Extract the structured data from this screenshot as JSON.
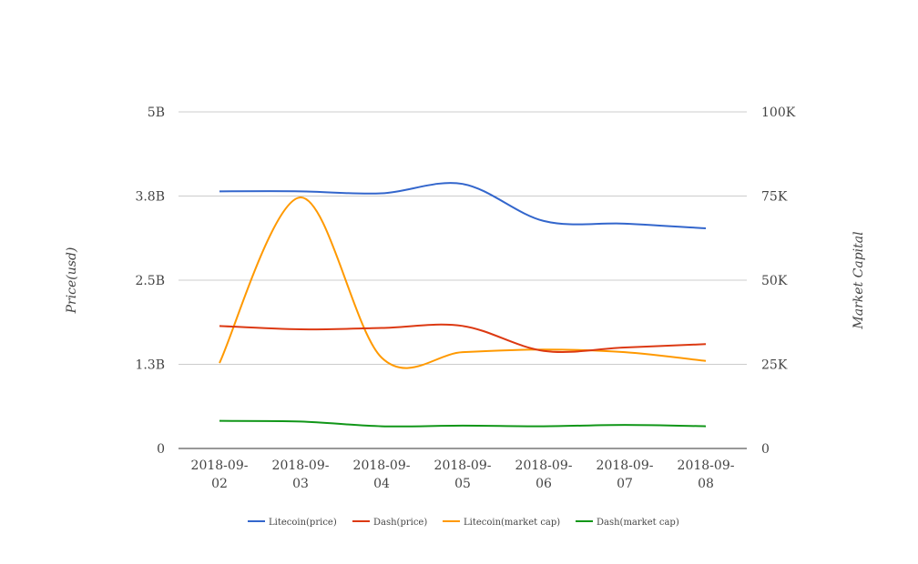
{
  "chart_data": {
    "type": "line",
    "categories": [
      "2018-09-02",
      "2018-09-03",
      "2018-09-04",
      "2018-09-05",
      "2018-09-06",
      "2018-09-07",
      "2018-09-08"
    ],
    "category_lines": [
      [
        "2018-09-",
        "02"
      ],
      [
        "2018-09-",
        "03"
      ],
      [
        "2018-09-",
        "04"
      ],
      [
        "2018-09-",
        "05"
      ],
      [
        "2018-09-",
        "06"
      ],
      [
        "2018-09-",
        "07"
      ],
      [
        "2018-09-",
        "08"
      ]
    ],
    "ylabel": "Price(usd)",
    "y2label": "Market Capital",
    "ylim": [
      0,
      5
    ],
    "y_unit": "B",
    "y_ticks": [
      0,
      1.25,
      2.5,
      3.75,
      5
    ],
    "y_tick_labels": [
      "0",
      "1.3B",
      "2.5B",
      "3.8B",
      "5B"
    ],
    "y2_tick_labels": [
      "0",
      "25K",
      "50K",
      "75K",
      "100K"
    ],
    "grid": true,
    "legend_position": "bottom",
    "series": [
      {
        "name": "Litecoin(price)",
        "color": "#3366cc",
        "values": [
          3.82,
          3.82,
          3.79,
          3.93,
          3.38,
          3.34,
          3.27
        ]
      },
      {
        "name": "Dash(price)",
        "color": "#dc3912",
        "values": [
          1.82,
          1.77,
          1.79,
          1.82,
          1.45,
          1.5,
          1.55
        ]
      },
      {
        "name": "Litecoin(market cap)",
        "color": "#ff9900",
        "values": [
          1.27,
          3.73,
          1.35,
          1.43,
          1.47,
          1.43,
          1.3
        ]
      },
      {
        "name": "Dash(market cap)",
        "color": "#109618",
        "values": [
          0.41,
          0.4,
          0.33,
          0.34,
          0.33,
          0.35,
          0.33
        ]
      }
    ]
  }
}
